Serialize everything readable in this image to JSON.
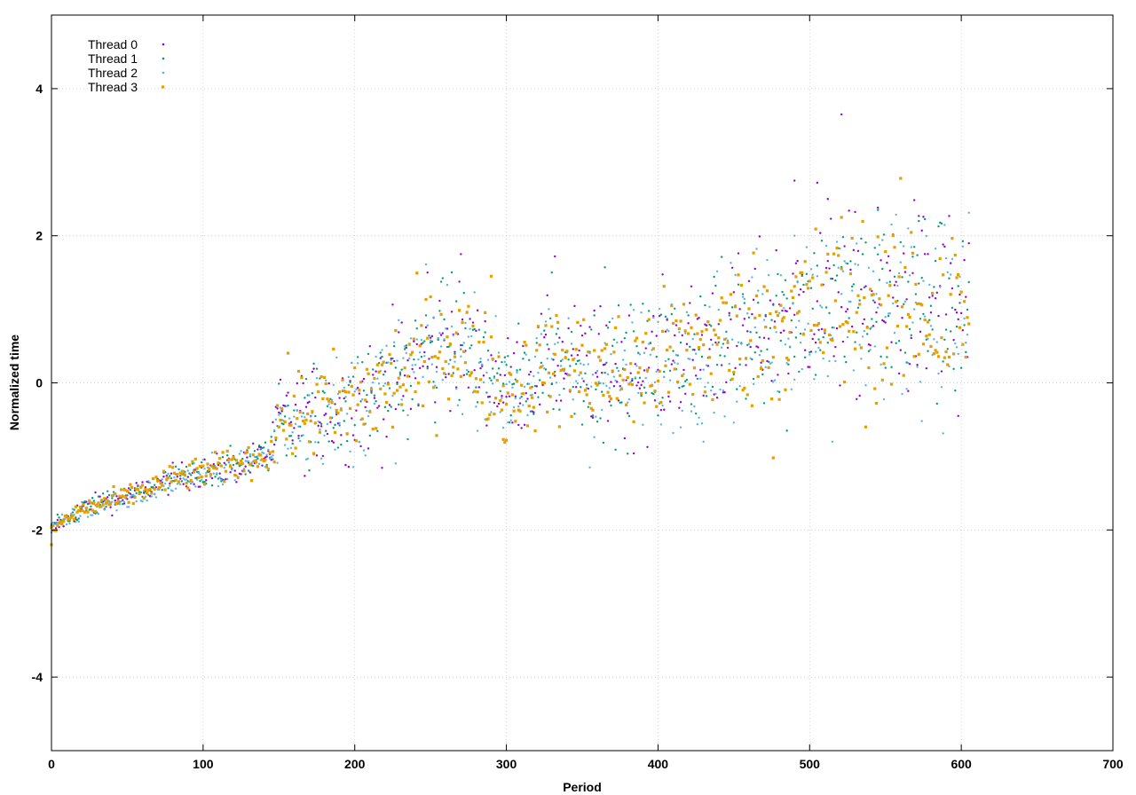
{
  "chart_data": {
    "type": "scatter",
    "title": "",
    "xlabel": "Period",
    "ylabel": "Normalized time",
    "xlim": [
      0,
      700
    ],
    "ylim": [
      -5,
      5
    ],
    "x_ticks": [
      0,
      100,
      200,
      300,
      400,
      500,
      600,
      700
    ],
    "y_ticks": [
      -4,
      -2,
      0,
      2,
      4
    ],
    "grid": true,
    "legend_position": "top-left",
    "series": [
      {
        "name": "Thread 0",
        "color": "#9400d3",
        "marker": "dot",
        "trend": [
          [
            0,
            -2.0
          ],
          [
            20,
            -1.7
          ],
          [
            50,
            -1.55
          ],
          [
            80,
            -1.3
          ],
          [
            120,
            -1.15
          ],
          [
            145,
            -0.95
          ],
          [
            150,
            -0.5
          ],
          [
            200,
            -0.3
          ],
          [
            240,
            0.2
          ],
          [
            260,
            0.6
          ],
          [
            280,
            0.4
          ],
          [
            300,
            -0.1
          ],
          [
            330,
            0.3
          ],
          [
            380,
            0.1
          ],
          [
            420,
            0.45
          ],
          [
            460,
            0.7
          ],
          [
            500,
            1.1
          ],
          [
            540,
            1.0
          ],
          [
            570,
            1.1
          ],
          [
            605,
            0.9
          ]
        ],
        "spread": [
          [
            0,
            0.06
          ],
          [
            145,
            0.12
          ],
          [
            150,
            0.3
          ],
          [
            240,
            0.45
          ],
          [
            300,
            0.35
          ],
          [
            400,
            0.45
          ],
          [
            605,
            0.7
          ]
        ],
        "outliers": [
          [
            521,
            3.65
          ],
          [
            490,
            2.75
          ],
          [
            505,
            2.72
          ],
          [
            512,
            2.5
          ],
          [
            270,
            1.75
          ],
          [
            332,
            1.72
          ],
          [
            248,
            1.5
          ],
          [
            598,
            -0.45
          ]
        ]
      },
      {
        "name": "Thread 1",
        "color": "#009e73",
        "marker": "dot",
        "trend": [
          [
            0,
            -2.0
          ],
          [
            20,
            -1.72
          ],
          [
            50,
            -1.55
          ],
          [
            80,
            -1.32
          ],
          [
            120,
            -1.12
          ],
          [
            145,
            -0.95
          ],
          [
            150,
            -0.5
          ],
          [
            200,
            -0.28
          ],
          [
            240,
            0.22
          ],
          [
            260,
            0.6
          ],
          [
            280,
            0.38
          ],
          [
            300,
            -0.1
          ],
          [
            330,
            0.3
          ],
          [
            380,
            0.12
          ],
          [
            420,
            0.45
          ],
          [
            460,
            0.7
          ],
          [
            500,
            1.1
          ],
          [
            540,
            1.05
          ],
          [
            570,
            1.15
          ],
          [
            605,
            0.95
          ]
        ],
        "spread": [
          [
            0,
            0.06
          ],
          [
            145,
            0.12
          ],
          [
            150,
            0.3
          ],
          [
            240,
            0.45
          ],
          [
            300,
            0.35
          ],
          [
            400,
            0.45
          ],
          [
            605,
            0.7
          ]
        ],
        "outliers": [
          [
            365,
            1.57
          ],
          [
            330,
            1.5
          ],
          [
            572,
            2.2
          ],
          [
            545,
            2.35
          ],
          [
            485,
            -0.65
          ]
        ]
      },
      {
        "name": "Thread 2",
        "color": "#56b4e9",
        "marker": "dot",
        "trend": [
          [
            0,
            -2.0
          ],
          [
            20,
            -1.75
          ],
          [
            50,
            -1.58
          ],
          [
            80,
            -1.35
          ],
          [
            120,
            -1.15
          ],
          [
            145,
            -0.98
          ],
          [
            150,
            -0.55
          ],
          [
            200,
            -0.3
          ],
          [
            240,
            0.2
          ],
          [
            260,
            0.55
          ],
          [
            280,
            0.35
          ],
          [
            300,
            -0.15
          ],
          [
            330,
            0.25
          ],
          [
            380,
            0.1
          ],
          [
            420,
            0.4
          ],
          [
            460,
            0.65
          ],
          [
            500,
            1.05
          ],
          [
            540,
            1.0
          ],
          [
            570,
            1.1
          ],
          [
            605,
            0.9
          ]
        ],
        "spread": [
          [
            0,
            0.06
          ],
          [
            145,
            0.12
          ],
          [
            150,
            0.3
          ],
          [
            240,
            0.45
          ],
          [
            300,
            0.35
          ],
          [
            400,
            0.45
          ],
          [
            605,
            0.7
          ]
        ],
        "outliers": [
          [
            355,
            -1.15
          ],
          [
            430,
            -0.8
          ],
          [
            490,
            2.0
          ],
          [
            565,
            2.1
          ],
          [
            515,
            -0.8
          ]
        ]
      },
      {
        "name": "Thread 3",
        "color": "#e69f00",
        "marker": "square",
        "trend": [
          [
            0,
            -2.0
          ],
          [
            20,
            -1.72
          ],
          [
            50,
            -1.55
          ],
          [
            80,
            -1.3
          ],
          [
            120,
            -1.12
          ],
          [
            145,
            -0.95
          ],
          [
            150,
            -0.5
          ],
          [
            200,
            -0.28
          ],
          [
            240,
            0.2
          ],
          [
            260,
            0.55
          ],
          [
            280,
            0.35
          ],
          [
            300,
            -0.15
          ],
          [
            330,
            0.25
          ],
          [
            380,
            0.1
          ],
          [
            420,
            0.45
          ],
          [
            460,
            0.7
          ],
          [
            500,
            1.0
          ],
          [
            540,
            0.95
          ],
          [
            570,
            1.05
          ],
          [
            605,
            0.85
          ]
        ],
        "spread": [
          [
            0,
            0.06
          ],
          [
            145,
            0.12
          ],
          [
            150,
            0.3
          ],
          [
            240,
            0.45
          ],
          [
            300,
            0.35
          ],
          [
            400,
            0.45
          ],
          [
            605,
            0.7
          ]
        ],
        "outliers": [
          [
            0,
            -2.2
          ],
          [
            476,
            -1.02
          ],
          [
            521,
            2.25
          ],
          [
            290,
            1.45
          ],
          [
            298,
            -0.77
          ],
          [
            300,
            -0.78
          ]
        ]
      }
    ]
  }
}
